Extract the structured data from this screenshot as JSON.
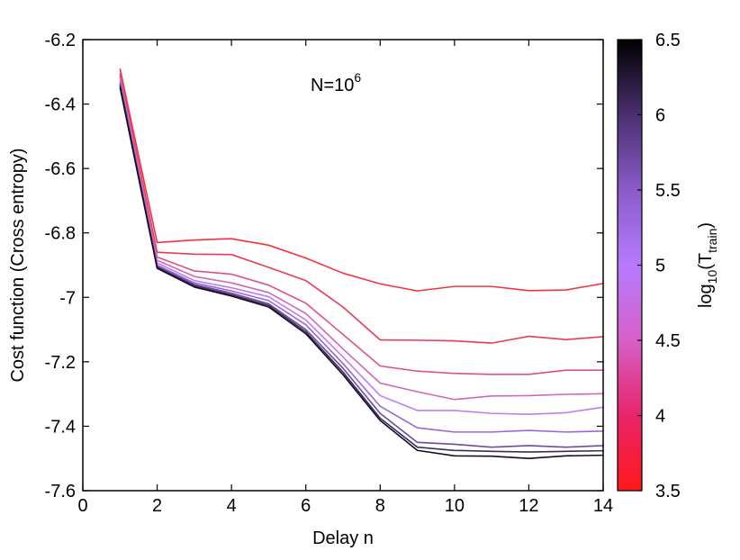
{
  "chart_data": {
    "type": "line",
    "title": "",
    "xlabel": "Delay n",
    "ylabel": "Cost function (Cross entropy)",
    "xlim": [
      0,
      14
    ],
    "ylim": [
      -7.6,
      -6.2
    ],
    "xticks": [
      "0",
      "2",
      "4",
      "6",
      "8",
      "10",
      "12",
      "14"
    ],
    "yticks": [
      "-6.2",
      "-6.4",
      "-6.6",
      "-6.8",
      "-7",
      "-7.2",
      "-7.4",
      "-7.6"
    ],
    "grid": false,
    "annotation": {
      "base": "N=10",
      "sup": "6"
    },
    "colorbar": {
      "label_base": "log",
      "label_sub": "10",
      "label_open": "(T",
      "label_sub2": "train",
      "label_close": ")",
      "range": [
        3.5,
        6.5
      ],
      "ticks": [
        "3.5",
        "4",
        "4.5",
        "5",
        "5.5",
        "6",
        "6.5"
      ],
      "colors": [
        "#ff1a1a",
        "#e8246a",
        "#d660c8",
        "#b77aff",
        "#8a5cc8",
        "#4a2f70",
        "#000000"
      ]
    },
    "x": [
      1,
      2,
      3,
      4,
      5,
      6,
      7,
      8,
      9,
      10,
      11,
      12,
      13,
      14
    ],
    "series": [
      {
        "level": 3.5,
        "color": "#f5333c",
        "values": [
          -6.29,
          -6.83,
          -6.822,
          -6.818,
          -6.838,
          -6.878,
          -6.925,
          -6.958,
          -6.98,
          -6.966,
          -6.966,
          -6.979,
          -6.977,
          -6.957
        ]
      },
      {
        "level": 3.85,
        "color": "#ea3a5a",
        "values": [
          -6.305,
          -6.86,
          -6.866,
          -6.867,
          -6.907,
          -6.948,
          -7.03,
          -7.132,
          -7.133,
          -7.135,
          -7.142,
          -7.121,
          -7.131,
          -7.122
        ]
      },
      {
        "level": 4.2,
        "color": "#de4f86",
        "values": [
          -6.312,
          -6.875,
          -6.918,
          -6.928,
          -6.962,
          -7.018,
          -7.115,
          -7.213,
          -7.229,
          -7.236,
          -7.239,
          -7.239,
          -7.226,
          -7.226
        ]
      },
      {
        "level": 4.55,
        "color": "#d067b8",
        "values": [
          -6.318,
          -6.885,
          -6.935,
          -6.955,
          -6.985,
          -7.05,
          -7.16,
          -7.266,
          -7.293,
          -7.317,
          -7.306,
          -7.305,
          -7.301,
          -7.299
        ]
      },
      {
        "level": 4.9,
        "color": "#bd7ef0",
        "values": [
          -6.324,
          -6.893,
          -6.948,
          -6.97,
          -6.998,
          -7.07,
          -7.185,
          -7.305,
          -7.351,
          -7.351,
          -7.36,
          -7.363,
          -7.358,
          -7.341
        ]
      },
      {
        "level": 5.25,
        "color": "#9a67d6",
        "values": [
          -6.33,
          -6.9,
          -6.955,
          -6.98,
          -7.01,
          -7.085,
          -7.205,
          -7.338,
          -7.405,
          -7.418,
          -7.418,
          -7.413,
          -7.418,
          -7.415
        ]
      },
      {
        "level": 5.6,
        "color": "#6e4aa0",
        "values": [
          -6.336,
          -6.904,
          -6.96,
          -6.987,
          -7.02,
          -7.1,
          -7.22,
          -7.36,
          -7.45,
          -7.456,
          -7.465,
          -7.46,
          -7.465,
          -7.46
        ]
      },
      {
        "level": 5.95,
        "color": "#3f2b5e",
        "values": [
          -6.342,
          -6.907,
          -6.964,
          -6.992,
          -7.025,
          -7.107,
          -7.232,
          -7.375,
          -7.465,
          -7.475,
          -7.478,
          -7.48,
          -7.478,
          -7.476
        ]
      },
      {
        "level": 6.3,
        "color": "#140d1e",
        "values": [
          -6.348,
          -6.91,
          -6.968,
          -6.996,
          -7.03,
          -7.113,
          -7.24,
          -7.382,
          -7.475,
          -7.492,
          -7.493,
          -7.5,
          -7.492,
          -7.49
        ]
      }
    ]
  }
}
